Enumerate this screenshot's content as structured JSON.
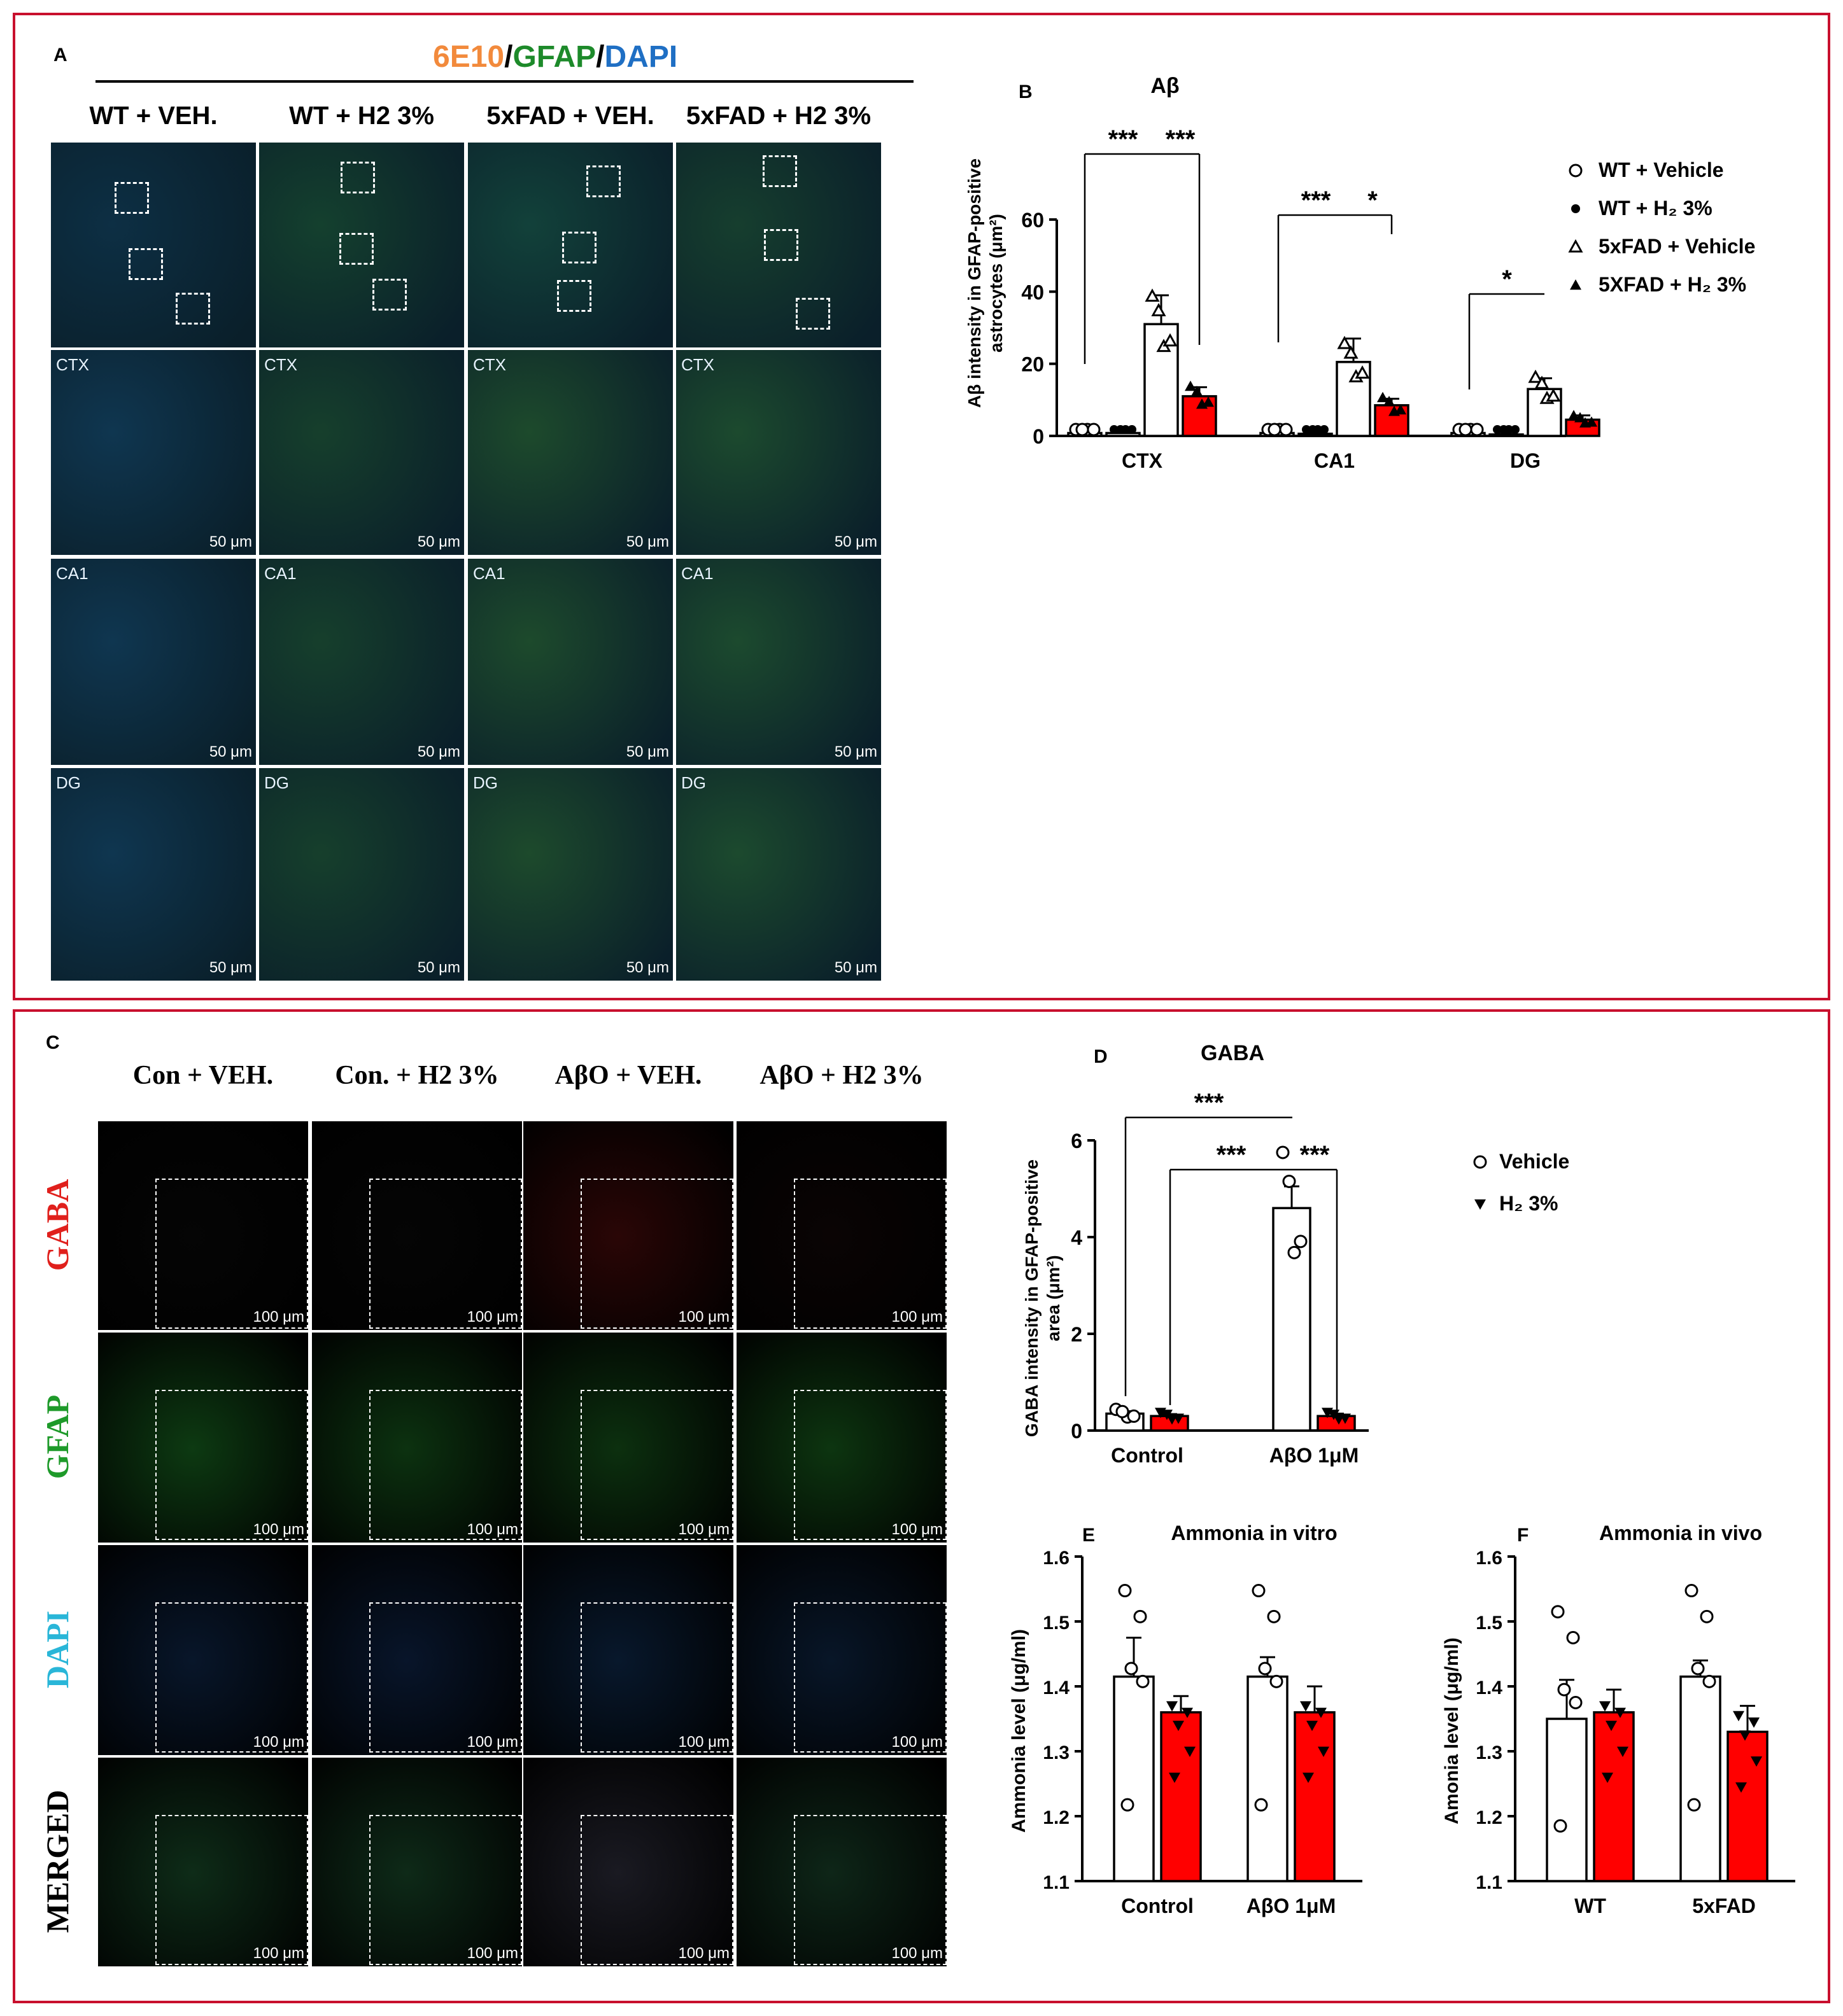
{
  "panel_labels": {
    "a": "A",
    "b": "B",
    "c": "C",
    "d": "D",
    "e": "E",
    "f": "F"
  },
  "panel_a": {
    "stain_parts": [
      {
        "text": "6E10",
        "color": "#f28a3c"
      },
      {
        "text": "/",
        "color": "#000000"
      },
      {
        "text": "GFAP",
        "color": "#1d8a2a"
      },
      {
        "text": "/",
        "color": "#000000"
      },
      {
        "text": "DAPI",
        "color": "#1f6fc4"
      }
    ],
    "columns": [
      "WT + VEH.",
      "WT + H2  3%",
      "5xFAD + VEH.",
      "5xFAD + H2 3%"
    ],
    "regions": [
      "CTX",
      "CA1",
      "DG"
    ],
    "scale_bar": "50 μm"
  },
  "panel_c": {
    "columns": [
      "Con + VEH.",
      "Con. + H2 3%",
      "AβO + VEH.",
      "AβO + H2 3%"
    ],
    "rows": [
      {
        "label": "GABA",
        "color": "#e0201c",
        "tint": "#000000"
      },
      {
        "label": "GFAP",
        "color": "#1e9a2a",
        "tint": "#0a1a0a"
      },
      {
        "label": "DAPI",
        "color": "#29b6d8",
        "tint": "#050a14"
      },
      {
        "label": "MERGED",
        "color": "#000000",
        "tint": "#081008"
      }
    ],
    "scale_bar": "100 μm"
  },
  "chart_data": [
    {
      "id": "B",
      "type": "bar",
      "title": "Aβ",
      "ylabel": "Aβ intensity in GFAP-positive astrocytes (μm²)",
      "ylim": [
        0,
        60
      ],
      "yticks": [
        0,
        20,
        40,
        60
      ],
      "categories": [
        "CTX",
        "CA1",
        "DG"
      ],
      "series": [
        {
          "name": "WT + Vehicle",
          "marker": "open-circle",
          "fill": "#ffffff",
          "values": [
            0.8,
            0.8,
            0.8
          ]
        },
        {
          "name": "WT + H₂ 3%",
          "marker": "filled-circle",
          "fill": "#ffffff",
          "values": [
            0.8,
            0.6,
            0.4
          ]
        },
        {
          "name": "5xFAD + Vehicle",
          "marker": "open-triangle",
          "fill": "#ffffff",
          "values": [
            31,
            20.5,
            13
          ]
        },
        {
          "name": "5XFAD + H₂ 3%",
          "marker": "filled-triangle",
          "fill": "#ff0000",
          "values": [
            11,
            8.5,
            4.5
          ]
        }
      ],
      "errors": [
        [
          0.3,
          0.3,
          0.3
        ],
        [
          0.3,
          0.3,
          0.2
        ],
        [
          8,
          6.5,
          3
        ],
        [
          2.5,
          1.8,
          1.2
        ]
      ],
      "annotations": [
        "***",
        "***",
        "***",
        "*",
        "*"
      ]
    },
    {
      "id": "D",
      "type": "bar",
      "title": "GABA",
      "ylabel": "GABA intensity in GFAP-positive area (μm²)",
      "ylim": [
        0,
        6
      ],
      "yticks": [
        0,
        2,
        4,
        6
      ],
      "categories": [
        "Control",
        "AβO 1μM"
      ],
      "series": [
        {
          "name": "Vehicle",
          "marker": "open-circle",
          "fill": "#ffffff",
          "values": [
            0.35,
            4.6
          ]
        },
        {
          "name": "H₂ 3%",
          "marker": "filled-down-triangle",
          "fill": "#ff0000",
          "values": [
            0.3,
            0.3
          ]
        }
      ],
      "errors": [
        [
          0.05,
          0.45
        ],
        [
          0.04,
          0.05
        ]
      ],
      "annotations": [
        "***",
        "***",
        "***"
      ]
    },
    {
      "id": "E",
      "type": "bar",
      "title": "Ammonia in vitro",
      "ylabel": "Ammonia level (μg/ml)",
      "ylim": [
        1.1,
        1.6
      ],
      "yticks": [
        1.1,
        1.2,
        1.3,
        1.4,
        1.5,
        1.6
      ],
      "categories": [
        "Control",
        "AβO 1μM"
      ],
      "series": [
        {
          "name": "Vehicle",
          "fill": "#ffffff",
          "values": [
            1.415,
            1.415
          ]
        },
        {
          "name": "H₂ 3%",
          "fill": "#ff0000",
          "values": [
            1.36,
            1.36
          ]
        }
      ],
      "errors": [
        [
          0.06,
          0.03
        ],
        [
          0.025,
          0.04
        ]
      ]
    },
    {
      "id": "F",
      "type": "bar",
      "title": "Ammonia in vivo",
      "ylabel": "Amonia level (μg/ml)",
      "ylim": [
        1.1,
        1.6
      ],
      "yticks": [
        1.1,
        1.2,
        1.3,
        1.4,
        1.5,
        1.6
      ],
      "categories": [
        "WT",
        "5xFAD"
      ],
      "series": [
        {
          "name": "Vehicle",
          "fill": "#ffffff",
          "values": [
            1.35,
            1.415
          ]
        },
        {
          "name": "H₂ 3%",
          "fill": "#ff0000",
          "values": [
            1.36,
            1.33
          ]
        }
      ],
      "errors": [
        [
          0.06,
          0.025
        ],
        [
          0.035,
          0.04
        ]
      ]
    }
  ]
}
